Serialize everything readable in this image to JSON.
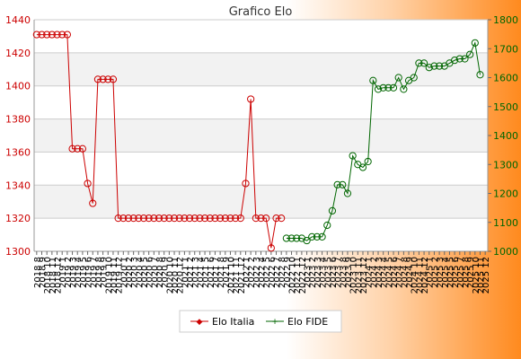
{
  "colors": {
    "series_italia": "#cc0000",
    "series_fide": "#006600",
    "axis_left_text": "#cc0000",
    "axis_right_text": "#006600",
    "background_gradient": [
      "#ffffff",
      "#ff8a1e"
    ]
  },
  "chart_data": {
    "type": "line",
    "title": "Grafico Elo",
    "grid": true,
    "legend_position": "bottom",
    "x": [
      "2018 8",
      "2018 9",
      "2018 10",
      "2018 11",
      "2018 12",
      "2019 1",
      "2019 2",
      "2019 3",
      "2019 4",
      "2019 5",
      "2019 6",
      "2019 7",
      "2019 8",
      "2019 9",
      "2019 10",
      "2019 11",
      "2019 12",
      "2020 1",
      "2020 2",
      "2020 3",
      "2020 4",
      "2020 5",
      "2020 6",
      "2020 7",
      "2020 8",
      "2020 9",
      "2020 10",
      "2020 11",
      "2020 12",
      "2021 1",
      "2021 2",
      "2021 3",
      "2021 4",
      "2021 5",
      "2021 6",
      "2021 7",
      "2021 8",
      "2021 9",
      "2021 10",
      "2021 11",
      "2021 12",
      "2022 1",
      "2022 2",
      "2022 3",
      "2022 4",
      "2022 5",
      "2022 6",
      "2022 7",
      "2022 8",
      "2022 9",
      "2022 10",
      "2022 11",
      "2022 12",
      "2023 1",
      "2023 2",
      "2023 3",
      "2023 4",
      "2023 5",
      "2023 6",
      "2023 7",
      "2023 8",
      "2023 9",
      "2023 10",
      "2023 11",
      "2023 12",
      "2024 1",
      "2024 2",
      "2024 3",
      "2024 4",
      "2024 5",
      "2024 6",
      "2024 7",
      "2024 8",
      "2024 9",
      "2024 10",
      "2024 11",
      "2024 12",
      "2025 1",
      "2025 2",
      "2025 3",
      "2025 4",
      "2025 5",
      "2025 6",
      "2025 7",
      "2025 8",
      "2025 9",
      "2025 10",
      "2025 11",
      "2025 12"
    ],
    "y_left": {
      "ylim": [
        1300,
        1440
      ],
      "ticks": [
        1300,
        1320,
        1340,
        1360,
        1380,
        1400,
        1420,
        1440
      ]
    },
    "y_right": {
      "ylim": [
        1000,
        1800
      ],
      "ticks": [
        1000,
        1100,
        1200,
        1300,
        1400,
        1500,
        1600,
        1700,
        1800
      ]
    },
    "series": [
      {
        "name": "Elo Italia",
        "axis": "left",
        "values": [
          1431,
          1431,
          1431,
          1431,
          1431,
          1431,
          1431,
          1362,
          1362,
          1362,
          1341,
          1329,
          1404,
          1404,
          1404,
          1404,
          1320,
          1320,
          1320,
          1320,
          1320,
          1320,
          1320,
          1320,
          1320,
          1320,
          1320,
          1320,
          1320,
          1320,
          1320,
          1320,
          1320,
          1320,
          1320,
          1320,
          1320,
          1320,
          1320,
          1320,
          1320,
          1341,
          1392,
          1320,
          1320,
          1320,
          1302,
          1320,
          1320,
          null,
          null,
          null,
          null,
          null,
          null,
          null,
          null,
          null,
          null,
          null,
          null,
          null,
          null,
          null,
          null,
          null,
          null,
          null,
          null,
          null,
          null,
          null,
          null,
          null,
          null,
          null,
          null,
          null,
          null,
          null,
          null,
          null,
          null,
          null,
          null,
          null,
          null,
          null,
          null
        ]
      },
      {
        "name": "Elo FIDE",
        "axis": "right",
        "values": [
          null,
          null,
          null,
          null,
          null,
          null,
          null,
          null,
          null,
          null,
          null,
          null,
          null,
          null,
          null,
          null,
          null,
          null,
          null,
          null,
          null,
          null,
          null,
          null,
          null,
          null,
          null,
          null,
          null,
          null,
          null,
          null,
          null,
          null,
          null,
          null,
          null,
          null,
          null,
          null,
          null,
          null,
          null,
          null,
          null,
          null,
          null,
          null,
          null,
          1045,
          1045,
          1045,
          1045,
          1037,
          1050,
          1050,
          1050,
          1090,
          1140,
          1230,
          1230,
          1200,
          1330,
          1300,
          1290,
          1310,
          1590,
          1560,
          1565,
          1565,
          1565,
          1600,
          1560,
          1590,
          1600,
          1650,
          1650,
          1635,
          1640,
          1640,
          1640,
          1650,
          1660,
          1665,
          1665,
          1680,
          1720,
          1610,
          null
        ]
      }
    ]
  }
}
